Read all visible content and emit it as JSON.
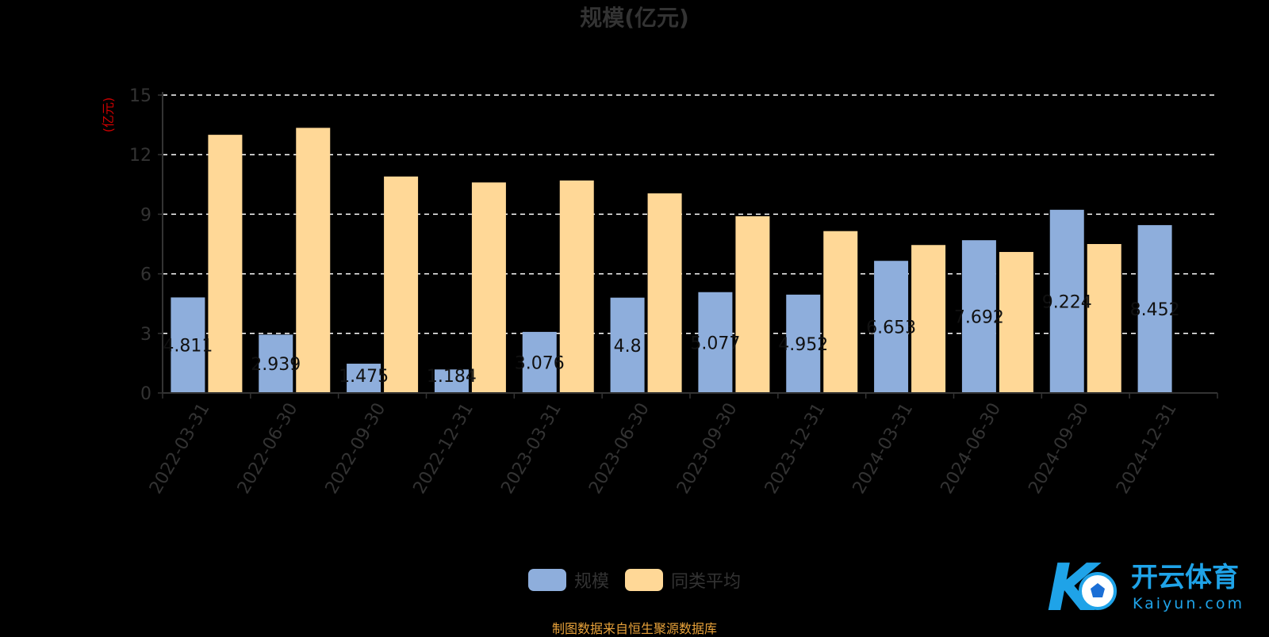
{
  "chart_data": {
    "type": "bar",
    "title": "规模(亿元)",
    "ylabel": "(亿元)",
    "ylim": [
      0,
      15
    ],
    "yticks": [
      0,
      3,
      6,
      9,
      12,
      15
    ],
    "grid": true,
    "legend_position": "bottom",
    "categories": [
      "2022-03-31",
      "2022-06-30",
      "2022-09-30",
      "2022-12-31",
      "2023-03-31",
      "2023-06-30",
      "2023-09-30",
      "2023-12-31",
      "2024-03-31",
      "2024-06-30",
      "2024-09-30",
      "2024-12-31"
    ],
    "series": [
      {
        "name": "规模",
        "color": "#8eaedc",
        "values": [
          4.811,
          2.939,
          1.475,
          1.184,
          3.076,
          4.8,
          5.077,
          4.952,
          6.653,
          7.692,
          9.224,
          8.452
        ],
        "labels": [
          "4.811",
          "2.939",
          "1.475",
          "1.184",
          "3.076",
          "4.8",
          "5.077",
          "4.952",
          "6.653",
          "7.692",
          "9.224",
          "8.452"
        ]
      },
      {
        "name": "同类平均",
        "color": "#ffd897",
        "values": [
          13.0,
          13.35,
          10.9,
          10.6,
          10.7,
          10.05,
          8.9,
          8.15,
          7.45,
          7.1,
          7.5,
          null
        ]
      }
    ]
  },
  "source_note": "制图数据来自恒生聚源数据库",
  "watermark": {
    "brand_text": "开云体育",
    "url_text": "Kaiyun.com",
    "logo_letter": "K"
  },
  "colors": {
    "background": "#000000",
    "axis": "#333333",
    "title": "#333333",
    "ylabel": "#cc0000",
    "gridline": "#ffffff",
    "source_note": "#e8a23a",
    "watermark_blue": "#1fa3e8"
  }
}
